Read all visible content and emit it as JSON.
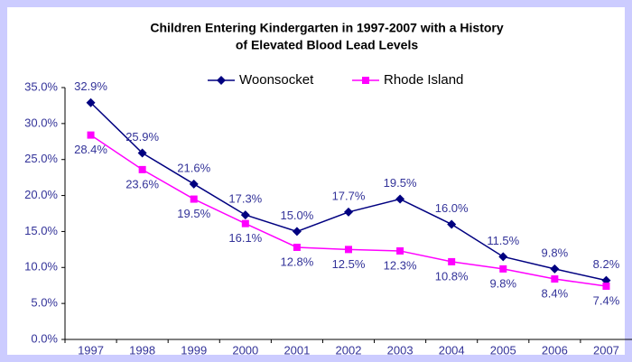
{
  "chart_data": {
    "type": "line",
    "title": "Children Entering Kindergarten in 1997-2007 with a History of Elevated Blood Lead Levels",
    "categories": [
      "1997",
      "1998",
      "1999",
      "2000",
      "2001",
      "2002",
      "2003",
      "2004",
      "2005",
      "2006",
      "2007"
    ],
    "series": [
      {
        "name": "Woonsocket",
        "color": "#000080",
        "marker": "diamond",
        "values": [
          32.9,
          25.9,
          21.6,
          17.3,
          15.0,
          17.7,
          19.5,
          16.0,
          11.5,
          9.8,
          8.2
        ],
        "value_labels": [
          "32.9%",
          "25.9%",
          "21.6%",
          "17.3%",
          "15.0%",
          "17.7%",
          "19.5%",
          "16.0%",
          "11.5%",
          "9.8%",
          "8.2%"
        ]
      },
      {
        "name": "Rhode Island",
        "color": "#ff00ff",
        "marker": "square",
        "values": [
          28.4,
          23.6,
          19.5,
          16.1,
          12.8,
          12.5,
          12.3,
          10.8,
          9.8,
          8.4,
          7.4
        ],
        "value_labels": [
          "28.4%",
          "23.6%",
          "19.5%",
          "16.1%",
          "12.8%",
          "12.5%",
          "12.3%",
          "10.8%",
          "9.8%",
          "8.4%",
          "7.4%"
        ]
      }
    ],
    "ylim": [
      0,
      35
    ],
    "yticks": [
      {
        "value": 0,
        "label": "0.0%"
      },
      {
        "value": 5,
        "label": "5.0%"
      },
      {
        "value": 10,
        "label": "10.0%"
      },
      {
        "value": 15,
        "label": "15.0%"
      },
      {
        "value": 20,
        "label": "20.0%"
      },
      {
        "value": 25,
        "label": "25.0%"
      },
      {
        "value": 30,
        "label": "30.0%"
      },
      {
        "value": 35,
        "label": "35.0%"
      }
    ],
    "legend": "top"
  }
}
